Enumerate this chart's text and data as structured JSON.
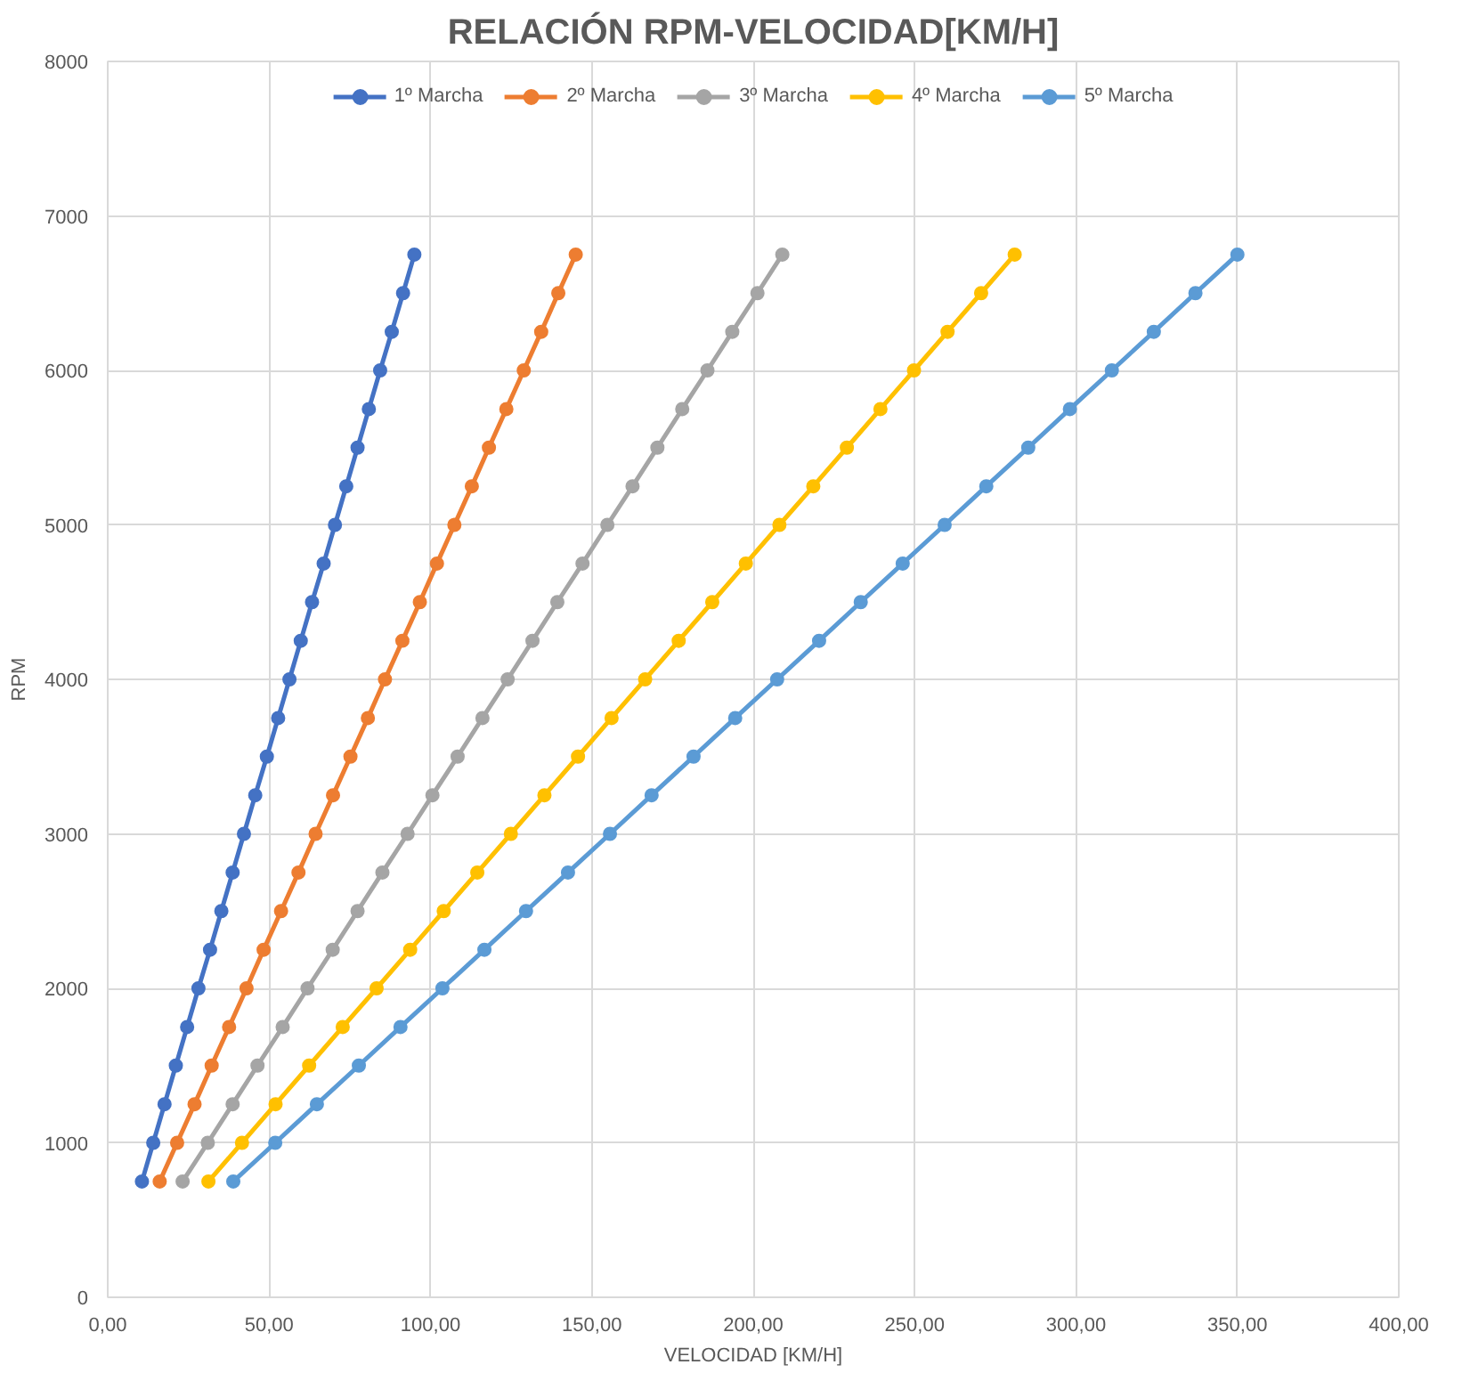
{
  "chart_data": {
    "type": "line",
    "title": "RELACIÓN RPM-VELOCIDAD[KM/H]",
    "xlabel": "VELOCIDAD [KM/H]",
    "ylabel": "RPM",
    "xlim": [
      0,
      400
    ],
    "ylim": [
      0,
      8000
    ],
    "xticks": [
      {
        "value": 0,
        "label": "0,00"
      },
      {
        "value": 50,
        "label": "50,00"
      },
      {
        "value": 100,
        "label": "100,00"
      },
      {
        "value": 150,
        "label": "150,00"
      },
      {
        "value": 200,
        "label": "200,00"
      },
      {
        "value": 250,
        "label": "250,00"
      },
      {
        "value": 300,
        "label": "300,00"
      },
      {
        "value": 350,
        "label": "350,00"
      },
      {
        "value": 400,
        "label": "400,00"
      }
    ],
    "yticks": [
      0,
      1000,
      2000,
      3000,
      4000,
      5000,
      6000,
      7000,
      8000
    ],
    "grid": true,
    "legend": "top",
    "marker": "circle",
    "line_style": "solid",
    "series": [
      {
        "name": "1º Marcha",
        "color": "#4472c4",
        "x": [
          10.6,
          14.1,
          17.6,
          21.1,
          24.6,
          28.1,
          31.7,
          35.2,
          38.7,
          42.2,
          45.7,
          49.3,
          52.8,
          56.3,
          59.8,
          63.3,
          66.9,
          70.4,
          73.9,
          77.4,
          80.9,
          84.4,
          88.0,
          91.5,
          95.0
        ],
        "values": [
          750,
          1000,
          1250,
          1500,
          1750,
          2000,
          2250,
          2500,
          2750,
          3000,
          3250,
          3500,
          3750,
          4000,
          4250,
          4500,
          4750,
          5000,
          5250,
          5500,
          5750,
          6000,
          6250,
          6500,
          6750
        ]
      },
      {
        "name": "2º Marcha",
        "color": "#ed7d31",
        "x": [
          16.1,
          21.5,
          26.9,
          32.2,
          37.6,
          43.0,
          48.3,
          53.7,
          59.1,
          64.4,
          69.8,
          75.2,
          80.6,
          85.9,
          91.3,
          96.7,
          102.0,
          107.4,
          112.8,
          118.1,
          123.5,
          128.9,
          134.3,
          139.6,
          145.0
        ],
        "values": [
          750,
          1000,
          1250,
          1500,
          1750,
          2000,
          2250,
          2500,
          2750,
          3000,
          3250,
          3500,
          3750,
          4000,
          4250,
          4500,
          4750,
          5000,
          5250,
          5500,
          5750,
          6000,
          6250,
          6500,
          6750
        ]
      },
      {
        "name": "3º Marcha",
        "color": "#a5a5a5",
        "x": [
          23.2,
          31.0,
          38.7,
          46.4,
          54.2,
          61.9,
          69.7,
          77.4,
          85.1,
          92.9,
          100.6,
          108.4,
          116.1,
          123.9,
          131.6,
          139.3,
          147.1,
          154.8,
          162.6,
          170.3,
          178.0,
          185.8,
          193.5,
          201.3,
          209.0
        ],
        "values": [
          750,
          1000,
          1250,
          1500,
          1750,
          2000,
          2250,
          2500,
          2750,
          3000,
          3250,
          3500,
          3750,
          4000,
          4250,
          4500,
          4750,
          5000,
          5250,
          5500,
          5750,
          6000,
          6250,
          6500,
          6750
        ]
      },
      {
        "name": "4º Marcha",
        "color": "#ffc000",
        "x": [
          31.2,
          41.6,
          52.0,
          62.4,
          72.8,
          83.3,
          93.7,
          104.1,
          114.5,
          124.9,
          135.3,
          145.7,
          156.1,
          166.5,
          176.9,
          187.3,
          197.7,
          208.1,
          218.6,
          229.0,
          239.4,
          249.8,
          260.2,
          270.6,
          281.0
        ],
        "values": [
          750,
          1000,
          1250,
          1500,
          1750,
          2000,
          2250,
          2500,
          2750,
          3000,
          3250,
          3500,
          3750,
          4000,
          4250,
          4500,
          4750,
          5000,
          5250,
          5500,
          5750,
          6000,
          6250,
          6500,
          6750
        ]
      },
      {
        "name": "5º Marcha",
        "color": "#5b9bd5",
        "x": [
          38.9,
          51.9,
          64.8,
          77.8,
          90.7,
          103.7,
          116.7,
          129.6,
          142.6,
          155.6,
          168.5,
          181.5,
          194.4,
          207.4,
          220.4,
          233.3,
          246.3,
          259.3,
          272.2,
          285.2,
          298.1,
          311.1,
          324.1,
          337.0,
          350.0
        ],
        "values": [
          750,
          1000,
          1250,
          1500,
          1750,
          2000,
          2250,
          2500,
          2750,
          3000,
          3250,
          3500,
          3750,
          4000,
          4250,
          4500,
          4750,
          5000,
          5250,
          5500,
          5750,
          6000,
          6250,
          6500,
          6750
        ]
      }
    ]
  }
}
